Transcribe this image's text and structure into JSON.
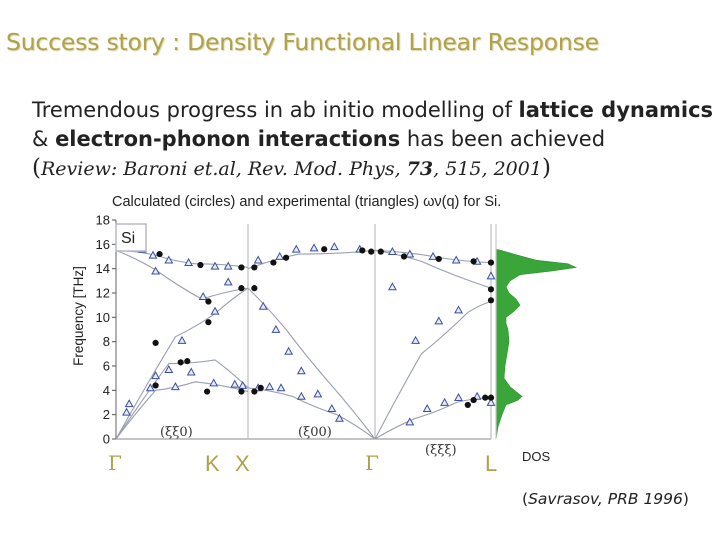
{
  "slide": {
    "title": "Success story : Density Functional Linear Response",
    "intro_plain_1": "Tremendous progress in ab initio modelling of ",
    "intro_bold_1": "lattice dynamics",
    "intro_plain_2": "& ",
    "intro_bold_2": "electron-phonon interactions",
    "intro_plain_3": " has been achieved",
    "intro_open_paren": "(",
    "review_text": "Review: Baroni et.al, Rev. Mod. Phys, ",
    "review_volume": "73",
    "review_rest": ", 515, 2001",
    "intro_close_paren": ")",
    "citation_open": "(",
    "citation_text": "Savrasov, PRB 1996",
    "citation_close": ")"
  },
  "chart_data": {
    "type": "scatter",
    "title": "Calculated (circles) and experimental (triangles) ων(q) for Si.",
    "ylabel": "Frequency [THz]",
    "ylim": [
      0,
      18
    ],
    "yticks": [
      0,
      2,
      4,
      6,
      8,
      10,
      12,
      14,
      16,
      18
    ],
    "material_label": "Si",
    "dos_label": "DOS",
    "direction_labels": [
      "(ξξ0)",
      "(ξ00)",
      "(ξξξ)"
    ],
    "panels": [
      {
        "from": "Γ",
        "to": "K",
        "direction": "(ξξ0)"
      },
      {
        "from": "X",
        "to": "Γ",
        "direction": "(ξ00)"
      },
      {
        "from": "Γ",
        "to": "L",
        "direction": "(ξξξ)"
      }
    ],
    "high_symmetry_points": [
      "Γ",
      "K",
      "X",
      "Γ",
      "L"
    ],
    "curve_color": "#9aa0b0",
    "circle_color": "#111111",
    "triangle_color": "#3a4fa0",
    "dos_color": "#3aa63a",
    "calculated_circles": {
      "gamma_k": [
        [
          0.3,
          4.4
        ],
        [
          0.49,
          6.3
        ],
        [
          0.54,
          6.4
        ],
        [
          0.69,
          3.9
        ],
        [
          0.3,
          7.9
        ],
        [
          0.7,
          9.6
        ],
        [
          0.33,
          15.2
        ],
        [
          0.64,
          14.3
        ],
        [
          0.7,
          11.3
        ],
        [
          0.95,
          14.1
        ],
        [
          0.95,
          3.9
        ],
        [
          0.95,
          12.4
        ]
      ],
      "x_gamma": [
        [
          0.05,
          3.9
        ],
        [
          0.05,
          12.4
        ],
        [
          0.05,
          14.1
        ],
        [
          0.1,
          4.2
        ],
        [
          0.2,
          14.5
        ],
        [
          0.3,
          14.9
        ],
        [
          0.6,
          15.6
        ],
        [
          0.9,
          15.5
        ],
        [
          0.97,
          15.4
        ]
      ],
      "gamma_l": [
        [
          0.05,
          15.4
        ],
        [
          0.25,
          15.0
        ],
        [
          0.55,
          14.8
        ],
        [
          0.85,
          14.6
        ],
        [
          1.0,
          14.5
        ],
        [
          1.0,
          12.3
        ],
        [
          1.0,
          11.4
        ],
        [
          0.85,
          3.2
        ],
        [
          0.95,
          3.4
        ],
        [
          0.8,
          2.8
        ],
        [
          1.0,
          3.4
        ]
      ]
    },
    "experimental_triangles": {
      "gamma_k": [
        [
          0.1,
          2.9
        ],
        [
          0.08,
          2.2
        ],
        [
          0.26,
          4.2
        ],
        [
          0.3,
          5.2
        ],
        [
          0.45,
          4.3
        ],
        [
          0.57,
          5.5
        ],
        [
          0.74,
          4.6
        ],
        [
          0.96,
          4.4
        ],
        [
          0.9,
          4.5
        ],
        [
          0.4,
          5.7
        ],
        [
          0.5,
          8.1
        ],
        [
          0.75,
          10.5
        ],
        [
          0.28,
          15.1
        ],
        [
          0.4,
          14.7
        ],
        [
          0.55,
          14.5
        ],
        [
          0.75,
          14.2
        ],
        [
          0.85,
          14.2
        ],
        [
          0.66,
          11.7
        ],
        [
          0.85,
          12.9
        ],
        [
          0.3,
          13.8
        ],
        [
          0.2,
          15.6
        ]
      ],
      "x_gamma": [
        [
          0.08,
          14.7
        ],
        [
          0.25,
          15.0
        ],
        [
          0.38,
          15.6
        ],
        [
          0.52,
          15.7
        ],
        [
          0.68,
          15.8
        ],
        [
          0.88,
          15.6
        ],
        [
          0.12,
          10.9
        ],
        [
          0.22,
          9.0
        ],
        [
          0.32,
          7.2
        ],
        [
          0.42,
          5.6
        ],
        [
          0.55,
          3.7
        ],
        [
          0.72,
          1.7
        ],
        [
          0.08,
          4.2
        ],
        [
          0.17,
          4.3
        ],
        [
          0.26,
          4.2
        ],
        [
          0.42,
          3.5
        ],
        [
          0.66,
          2.5
        ]
      ],
      "gamma_l": [
        [
          0.15,
          15.4
        ],
        [
          0.3,
          15.2
        ],
        [
          0.5,
          15.0
        ],
        [
          0.7,
          14.7
        ],
        [
          0.88,
          14.6
        ],
        [
          0.3,
          1.4
        ],
        [
          0.45,
          2.5
        ],
        [
          0.6,
          3.0
        ],
        [
          0.72,
          3.4
        ],
        [
          0.88,
          3.5
        ],
        [
          0.35,
          8.1
        ],
        [
          0.55,
          9.7
        ],
        [
          0.72,
          10.6
        ],
        [
          1.0,
          13.4
        ],
        [
          0.15,
          12.5
        ],
        [
          1.0,
          3.0
        ]
      ]
    }
  }
}
